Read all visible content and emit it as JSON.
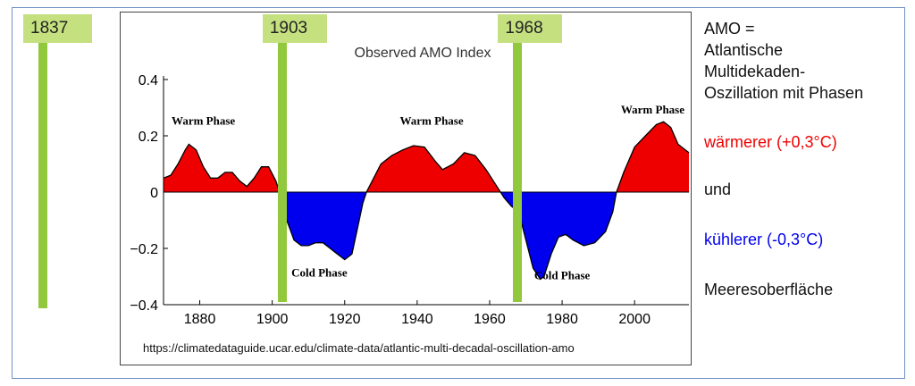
{
  "year_markers": [
    {
      "label": "1837",
      "year": 1837
    },
    {
      "label": "1903",
      "year": 1903
    },
    {
      "label": "1968",
      "year": 1968
    }
  ],
  "side_text": {
    "line1": "AMO =",
    "line2": "Atlantische",
    "line3": "Multidekaden-",
    "line4": "Oszillation mit Phasen",
    "warm": "wärmerer (+0,3°C)",
    "and": "und",
    "cool": "kühlerer (-0,3°C)",
    "last": "Meeresoberfläche"
  },
  "colors": {
    "warm": "#ee0000",
    "cool": "#0000ee",
    "marker_bar": "#92c83e",
    "marker_label": "#c5e07f",
    "frame": "#6f8fc4"
  },
  "source_url": "https://climatedataguide.ucar.edu/climate-data/atlantic-multi-decadal-oscillation-amo",
  "chart_data": {
    "type": "area",
    "title": "Observed AMO Index",
    "xlabel": "",
    "ylabel": "",
    "xlim": [
      1870,
      2015
    ],
    "ylim": [
      -0.4,
      0.4
    ],
    "x_ticks": [
      "1880",
      "1900",
      "1920",
      "1940",
      "1960",
      "1980",
      "2000"
    ],
    "y_ticks": [
      "0.4",
      "0.2",
      "0",
      "−0.2",
      "−0.4"
    ],
    "annotations": [
      {
        "text": "Warm Phase",
        "x": 1881,
        "y": 0.24
      },
      {
        "text": "Cold Phase",
        "x": 1913,
        "y": -0.3
      },
      {
        "text": "Warm Phase",
        "x": 1944,
        "y": 0.24
      },
      {
        "text": "Cold Phase",
        "x": 1980,
        "y": -0.31
      },
      {
        "text": "Warm Phase",
        "x": 2005,
        "y": 0.28
      }
    ],
    "series": [
      {
        "x": [
          1870,
          1872,
          1874,
          1876,
          1877,
          1879,
          1881,
          1883,
          1885,
          1887,
          1889,
          1891,
          1893,
          1895,
          1897,
          1899,
          1901,
          1902,
          1903,
          1904,
          1906,
          1908,
          1910,
          1912,
          1914,
          1916,
          1918,
          1920,
          1922,
          1924,
          1925,
          1926,
          1928,
          1930,
          1933,
          1936,
          1939,
          1942,
          1945,
          1947,
          1950,
          1953,
          1956,
          1959,
          1962,
          1964,
          1966,
          1968,
          1969,
          1970,
          1972,
          1974,
          1975,
          1977,
          1979,
          1981,
          1983,
          1986,
          1989,
          1992,
          1994,
          1995,
          1997,
          2000,
          2003,
          2006,
          2008,
          2010,
          2012,
          2015
        ],
        "y": [
          0.05,
          0.06,
          0.1,
          0.15,
          0.17,
          0.15,
          0.09,
          0.05,
          0.05,
          0.07,
          0.07,
          0.04,
          0.02,
          0.05,
          0.09,
          0.09,
          0.04,
          0.0,
          -0.05,
          -0.1,
          -0.17,
          -0.19,
          -0.19,
          -0.18,
          -0.18,
          -0.2,
          -0.22,
          -0.24,
          -0.22,
          -0.1,
          -0.04,
          0.0,
          0.05,
          0.1,
          0.13,
          0.15,
          0.165,
          0.16,
          0.11,
          0.08,
          0.1,
          0.14,
          0.13,
          0.08,
          0.02,
          -0.02,
          -0.05,
          -0.07,
          -0.12,
          -0.17,
          -0.27,
          -0.31,
          -0.3,
          -0.22,
          -0.16,
          -0.15,
          -0.17,
          -0.19,
          -0.18,
          -0.14,
          -0.07,
          0.0,
          0.07,
          0.16,
          0.2,
          0.24,
          0.25,
          0.23,
          0.17,
          0.14
        ]
      }
    ]
  }
}
